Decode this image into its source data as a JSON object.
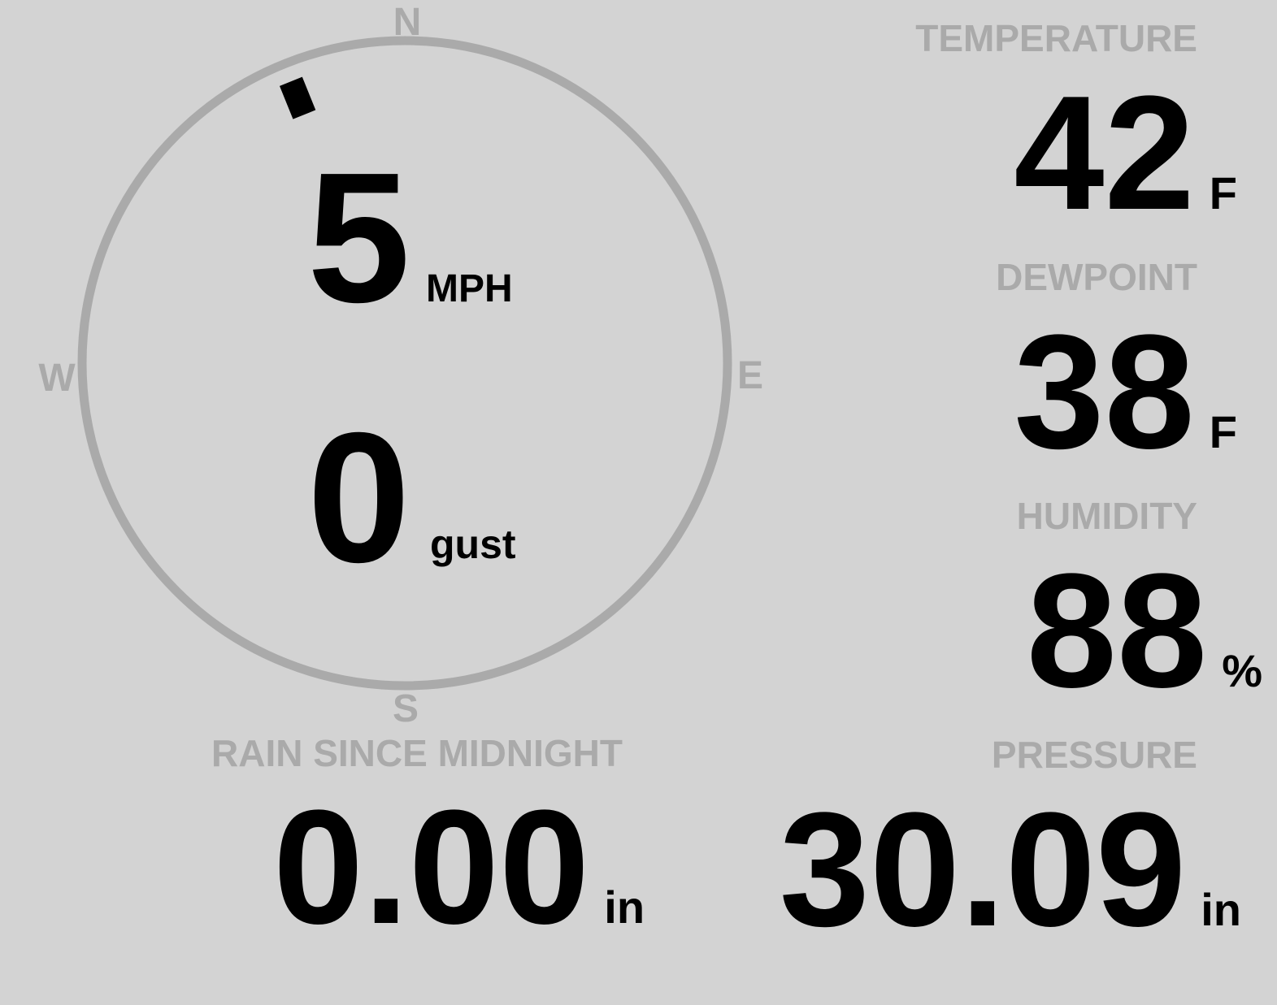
{
  "wind": {
    "compass": {
      "north": "N",
      "east": "E",
      "south": "S",
      "west": "W"
    },
    "direction_degrees": 338,
    "speed": "5",
    "speed_unit": "MPH",
    "gust": "0",
    "gust_unit": "gust"
  },
  "temperature": {
    "label": "TEMPERATURE",
    "value": "42",
    "unit": "F"
  },
  "dewpoint": {
    "label": "DEWPOINT",
    "value": "38",
    "unit": "F"
  },
  "humidity": {
    "label": "HUMIDITY",
    "value": "88",
    "unit": "%"
  },
  "rain": {
    "label": "RAIN SINCE MIDNIGHT",
    "value": "0.00",
    "unit": "in"
  },
  "pressure": {
    "label": "PRESSURE",
    "value": "30.09",
    "unit": "in"
  },
  "colors": {
    "background": "#d3d3d3",
    "label": "#aaaaaa",
    "value": "#000000",
    "ring": "#aaaaaa"
  }
}
